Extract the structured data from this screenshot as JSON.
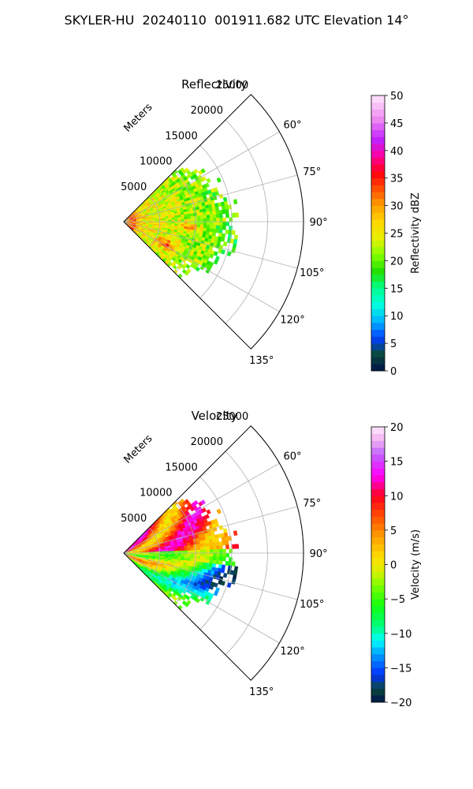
{
  "figure": {
    "suptitle": "SKYLER-HU  20240110  001911.682 UTC Elevation 14°"
  },
  "chart_data": [
    {
      "type": "heatmap",
      "subtype": "radar-ppi-sector",
      "title": "Reflectivity",
      "radial_label": "Meters",
      "r_ticks": [
        5000,
        10000,
        15000,
        20000,
        25000
      ],
      "r_tick_labels": [
        "5000",
        "10000",
        "15000",
        "20000",
        "25000"
      ],
      "rlim": [
        0,
        25000
      ],
      "theta_range_deg": [
        45,
        135
      ],
      "theta_ticks": [
        60,
        75,
        90,
        105,
        120,
        135
      ],
      "theta_tick_labels": [
        "60°",
        "75°",
        "90°",
        "105°",
        "120°",
        "135°"
      ],
      "grid": true,
      "data_extent_m": 16000,
      "colorbar": {
        "label": "Reflectivity dBZ",
        "range": [
          0,
          50
        ],
        "ticks": [
          0,
          5,
          10,
          15,
          20,
          25,
          30,
          35,
          40,
          45,
          50
        ],
        "tick_labels": [
          "0",
          "5",
          "10",
          "15",
          "20",
          "25",
          "30",
          "35",
          "40",
          "45",
          "50"
        ],
        "colormap": [
          [
            0,
            "#00124a"
          ],
          [
            3,
            "#0a4a3c"
          ],
          [
            6,
            "#0040ff"
          ],
          [
            9,
            "#00b4ff"
          ],
          [
            12,
            "#00ffe0"
          ],
          [
            15,
            "#00ff90"
          ],
          [
            18,
            "#20e000"
          ],
          [
            21,
            "#80ff00"
          ],
          [
            24,
            "#e8f000"
          ],
          [
            27,
            "#ffd800"
          ],
          [
            30,
            "#ffa000"
          ],
          [
            33,
            "#ff5000"
          ],
          [
            36,
            "#ff0010"
          ],
          [
            39,
            "#ff00a0"
          ],
          [
            42,
            "#c020ff"
          ],
          [
            46,
            "#f090f0"
          ],
          [
            50,
            "#ffe8ff"
          ]
        ]
      }
    },
    {
      "type": "heatmap",
      "subtype": "radar-ppi-sector",
      "title": "Velocity",
      "radial_label": "Meters",
      "r_ticks": [
        5000,
        10000,
        15000,
        20000,
        25000
      ],
      "r_tick_labels": [
        "5000",
        "10000",
        "15000",
        "20000",
        "25000"
      ],
      "rlim": [
        0,
        25000
      ],
      "theta_range_deg": [
        45,
        135
      ],
      "theta_ticks": [
        60,
        75,
        90,
        105,
        120,
        135
      ],
      "theta_tick_labels": [
        "60°",
        "75°",
        "90°",
        "105°",
        "120°",
        "135°"
      ],
      "grid": true,
      "data_extent_m": 16000,
      "colorbar": {
        "label": "Velocity (m/s)",
        "range": [
          -20,
          20
        ],
        "ticks": [
          -20,
          -15,
          -10,
          -5,
          0,
          5,
          10,
          15,
          20
        ],
        "tick_labels": [
          "−20",
          "−15",
          "−10",
          "−5",
          "0",
          "5",
          "10",
          "15",
          "20"
        ],
        "colormap": [
          [
            -20,
            "#00124a"
          ],
          [
            -18,
            "#0a4a3c"
          ],
          [
            -16,
            "#0030ff"
          ],
          [
            -13,
            "#00a0ff"
          ],
          [
            -11,
            "#00ffff"
          ],
          [
            -9,
            "#00ff80"
          ],
          [
            -6,
            "#10ff10"
          ],
          [
            -3,
            "#80ff00"
          ],
          [
            -1,
            "#d8f000"
          ],
          [
            1,
            "#ffe000"
          ],
          [
            4,
            "#ffa000"
          ],
          [
            7,
            "#ff5000"
          ],
          [
            10,
            "#ff0020"
          ],
          [
            13,
            "#ff00ff"
          ],
          [
            16,
            "#c060ff"
          ],
          [
            18,
            "#f0b0f0"
          ],
          [
            20,
            "#ffe8ff"
          ]
        ]
      }
    }
  ]
}
